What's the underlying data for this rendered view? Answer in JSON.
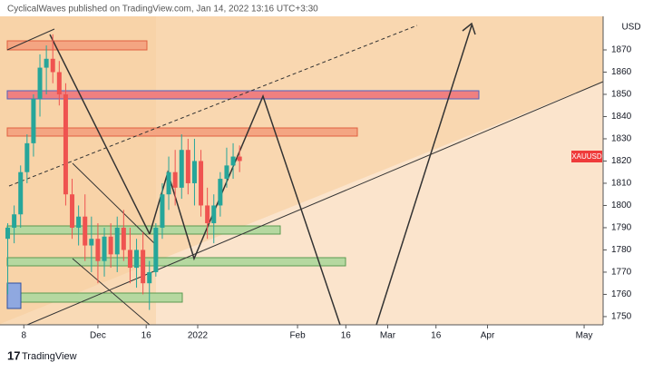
{
  "header": "CyclicalWaves published on TradingView.com, Jan 14, 2022 13:16 UTC+3:30",
  "footer": "TradingView",
  "chart_data": {
    "type": "candlestick",
    "symbol": "XAUUSD",
    "currency": "USD",
    "x": [
      2,
      4,
      6,
      8,
      10,
      12,
      14,
      16,
      18,
      20,
      22,
      24,
      26,
      28,
      30,
      32,
      34,
      36,
      38,
      40,
      42,
      44,
      46,
      48,
      50,
      52,
      54,
      56,
      58,
      60,
      62,
      64,
      66,
      68,
      70,
      72,
      74
    ],
    "open": [
      1785,
      1790,
      1796,
      1815,
      1828,
      1848,
      1862,
      1866,
      1860,
      1850,
      1805,
      1790,
      1795,
      1782,
      1785,
      1775,
      1786,
      1778,
      1790,
      1780,
      1772,
      1780,
      1765,
      1770,
      1790,
      1805,
      1815,
      1808,
      1825,
      1810,
      1820,
      1800,
      1792,
      1800,
      1812,
      1818,
      1822
    ],
    "high": [
      1792,
      1800,
      1818,
      1832,
      1850,
      1868,
      1872,
      1877,
      1865,
      1855,
      1812,
      1800,
      1805,
      1795,
      1792,
      1790,
      1792,
      1795,
      1798,
      1790,
      1785,
      1788,
      1775,
      1792,
      1810,
      1822,
      1825,
      1832,
      1830,
      1830,
      1825,
      1808,
      1805,
      1815,
      1826,
      1828,
      1827
    ],
    "low": [
      1760,
      1783,
      1790,
      1810,
      1822,
      1840,
      1850,
      1855,
      1845,
      1800,
      1785,
      1782,
      1775,
      1770,
      1765,
      1768,
      1772,
      1770,
      1775,
      1765,
      1763,
      1760,
      1753,
      1768,
      1785,
      1798,
      1800,
      1803,
      1805,
      1800,
      1795,
      1785,
      1783,
      1795,
      1808,
      1812,
      1815
    ],
    "close": [
      1790,
      1796,
      1815,
      1828,
      1848,
      1862,
      1866,
      1860,
      1850,
      1805,
      1790,
      1795,
      1782,
      1785,
      1775,
      1786,
      1778,
      1790,
      1780,
      1772,
      1780,
      1765,
      1770,
      1790,
      1805,
      1815,
      1808,
      1825,
      1810,
      1820,
      1800,
      1792,
      1800,
      1812,
      1818,
      1822,
      1820
    ],
    "up_color": "#26a69a",
    "down_color": "#ef5350",
    "xlim": [
      -0.4,
      186.9
    ],
    "xticks": [
      {
        "value": 7,
        "label": "8"
      },
      {
        "value": 30,
        "label": "Dec"
      },
      {
        "value": 45,
        "label": "16"
      },
      {
        "value": 61,
        "label": "2022"
      },
      {
        "value": 92,
        "label": "Feb"
      },
      {
        "value": 107,
        "label": "16"
      },
      {
        "value": 120,
        "label": "Mar"
      },
      {
        "value": 135,
        "label": "16"
      },
      {
        "value": 151,
        "label": "Apr"
      },
      {
        "value": 181,
        "label": "May"
      }
    ],
    "ylim": [
      1746.3,
      1885.1
    ],
    "yticks": [
      1750,
      1760,
      1770,
      1780,
      1790,
      1800,
      1810,
      1820,
      1830,
      1840,
      1850,
      1860,
      1870
    ]
  }
}
